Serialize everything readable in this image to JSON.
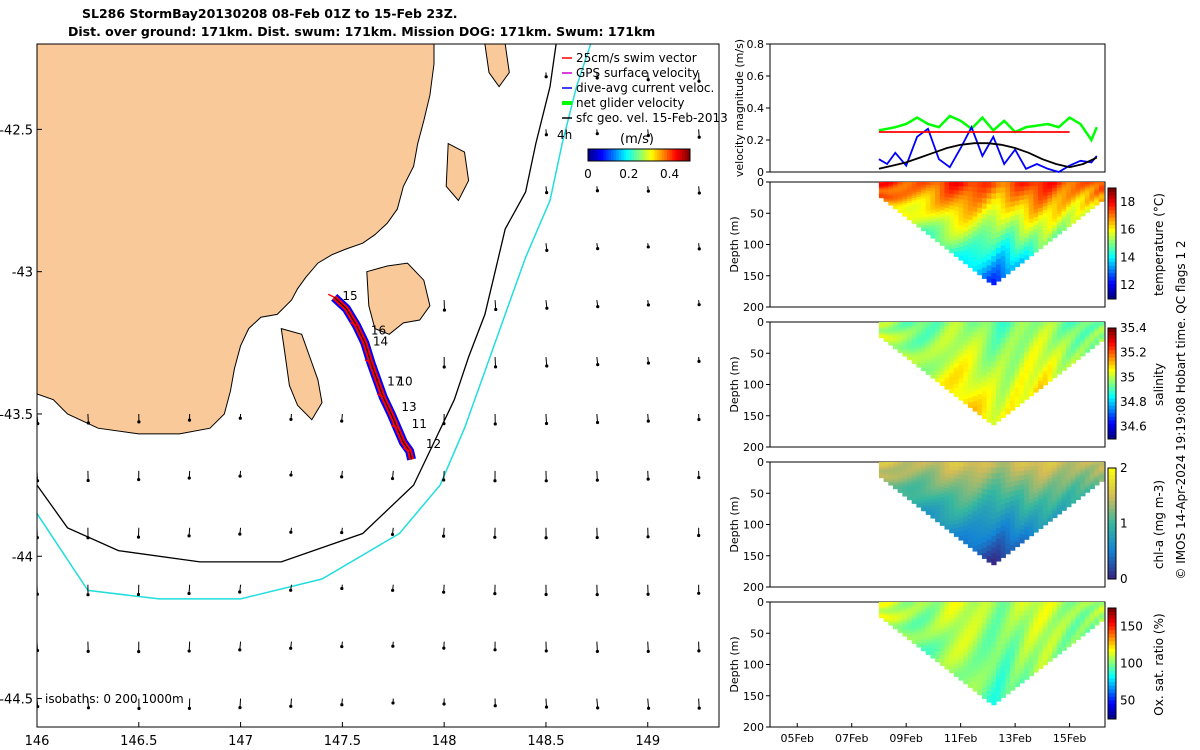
{
  "header": {
    "title_line1": "SL286 StormBay20130208 08-Feb 01Z to 15-Feb 23Z.",
    "title_line2": "Dist. over ground: 171km. Dist. swum: 171km. Mission DOG: 171km. Swum: 171km"
  },
  "side_text": "© IMOS 14-Apr-2024 19:19:08 Hobart time. QC flags 1  2",
  "colors": {
    "land": "#f9c999",
    "track": "#ff0000",
    "dive_avg": "#0000ff",
    "net_velocity": "#00ff00",
    "geo_velocity": "#000000",
    "isobath_200": "#000000",
    "isobath_1000": "#22dddd"
  },
  "chart_data": [
    {
      "type": "map",
      "x_ticks": [
        "146",
        "146.5",
        "147",
        "147.5",
        "148",
        "148.5",
        "149"
      ],
      "x_tick_values": [
        146,
        146.5,
        147,
        147.5,
        148,
        148.5,
        149
      ],
      "y_ticks": [
        "-42.5",
        "-43",
        "-43.5",
        "-44",
        "-44.5"
      ],
      "y_tick_values": [
        -42.5,
        -43,
        -43.5,
        -44,
        -44.5
      ],
      "xlim": [
        146,
        149.35
      ],
      "ylim": [
        -44.6,
        -42.2
      ],
      "legend": {
        "items": [
          "25cm/s swim vector",
          "GPS surface velocity",
          "dive-avg current veloc.",
          "net glider velocity",
          "sfc geo. vel. 15-Feb-2013"
        ],
        "colors": [
          "#ff0000",
          "#cc00cc",
          "#0000ff",
          "#00ff00",
          "#000000"
        ],
        "colorbar_label": "(m/s)",
        "colorbar_ticks": [
          "0",
          "0.2",
          "0.4"
        ],
        "colorbar_range": [
          0,
          0.5
        ],
        "placement": "top-right"
      },
      "annotation_4h": "4h",
      "isobath_label": "isobaths: 0   200  1000m",
      "day_labels": [
        {
          "text": "15",
          "lon": 147.5,
          "lat": -43.1
        },
        {
          "text": "16",
          "lon": 147.64,
          "lat": -43.22
        },
        {
          "text": "14",
          "lon": 147.65,
          "lat": -43.26
        },
        {
          "text": "17",
          "lon": 147.72,
          "lat": -43.4
        },
        {
          "text": "10",
          "lon": 147.77,
          "lat": -43.4
        },
        {
          "text": "13",
          "lon": 147.79,
          "lat": -43.49
        },
        {
          "text": "11",
          "lon": 147.84,
          "lat": -43.55
        },
        {
          "text": "12",
          "lon": 147.91,
          "lat": -43.62
        }
      ],
      "track": [
        [
          147.46,
          -43.09
        ],
        [
          147.52,
          -43.13
        ],
        [
          147.57,
          -43.19
        ],
        [
          147.61,
          -43.25
        ],
        [
          147.64,
          -43.32
        ],
        [
          147.67,
          -43.38
        ],
        [
          147.7,
          -43.44
        ],
        [
          147.74,
          -43.5
        ],
        [
          147.77,
          -43.55
        ],
        [
          147.8,
          -43.6
        ],
        [
          147.83,
          -43.63
        ],
        [
          147.84,
          -43.66
        ]
      ]
    },
    {
      "type": "line",
      "ylabel": "velocity magnitude (m/s)",
      "ylim": [
        0,
        0.8
      ],
      "y_ticks": [
        "0",
        "0.2",
        "0.4",
        "0.6",
        "0.8"
      ],
      "series": [
        {
          "color": "#00ff00",
          "x": [
            8.0,
            8.3,
            8.6,
            9.0,
            9.4,
            9.8,
            10.2,
            10.6,
            11.0,
            11.4,
            11.8,
            12.2,
            12.6,
            13.0,
            13.4,
            13.8,
            14.2,
            14.6,
            15.0,
            15.4,
            15.8,
            16.0
          ],
          "values": [
            0.26,
            0.27,
            0.28,
            0.3,
            0.34,
            0.3,
            0.28,
            0.35,
            0.32,
            0.27,
            0.34,
            0.26,
            0.32,
            0.25,
            0.28,
            0.29,
            0.3,
            0.28,
            0.34,
            0.3,
            0.2,
            0.28
          ]
        },
        {
          "color": "#0000ff",
          "x": [
            8.0,
            8.3,
            8.6,
            9.0,
            9.4,
            9.8,
            10.2,
            10.6,
            11.0,
            11.4,
            11.8,
            12.2,
            12.6,
            13.0,
            13.4,
            13.8,
            14.2,
            14.6,
            15.0,
            15.4,
            15.8,
            16.0
          ],
          "values": [
            0.08,
            0.05,
            0.12,
            0.04,
            0.22,
            0.27,
            0.08,
            0.03,
            0.15,
            0.28,
            0.1,
            0.22,
            0.05,
            0.14,
            0.02,
            0.05,
            0.02,
            0.0,
            0.04,
            0.07,
            0.06,
            0.1
          ]
        },
        {
          "color": "#000000",
          "x": [
            8.0,
            8.5,
            9.0,
            9.5,
            10.0,
            10.5,
            11.0,
            11.5,
            12.0,
            12.5,
            13.0,
            13.5,
            14.0,
            14.5,
            15.0,
            15.5,
            16.0
          ],
          "values": [
            0.02,
            0.04,
            0.06,
            0.09,
            0.12,
            0.15,
            0.17,
            0.18,
            0.18,
            0.17,
            0.15,
            0.12,
            0.08,
            0.05,
            0.03,
            0.05,
            0.09
          ]
        },
        {
          "color": "#ff0000",
          "x": [
            8.0,
            9.0,
            10.0,
            11.0,
            12.0,
            13.0,
            14.0,
            15.0
          ],
          "values": [
            0.25,
            0.25,
            0.25,
            0.25,
            0.25,
            0.25,
            0.25,
            0.25
          ]
        }
      ]
    },
    {
      "type": "heatmap",
      "variable": "temperature",
      "ylabel": "Depth (m)",
      "colorbar_label": "temperature (°C)",
      "colorbar_ticks": [
        "12",
        "14",
        "16",
        "18"
      ],
      "colorbar_range": [
        11,
        19
      ],
      "y_ticks": [
        "0",
        "50",
        "100",
        "150",
        "200"
      ],
      "ylim": [
        0,
        200
      ],
      "surface_value": 17.5,
      "bottom_value": 12.5
    },
    {
      "type": "heatmap",
      "variable": "salinity",
      "ylabel": "Depth (m)",
      "colorbar_label": "salinity",
      "colorbar_ticks": [
        "34.6",
        "34.8",
        "35",
        "35.2",
        "35.4"
      ],
      "colorbar_range": [
        34.5,
        35.4
      ],
      "y_ticks": [
        "0",
        "50",
        "100",
        "150",
        "200"
      ],
      "ylim": [
        0,
        200
      ],
      "surface_value": 34.95,
      "bottom_value": 35.1
    },
    {
      "type": "heatmap",
      "variable": "chl-a",
      "ylabel": "Depth (m)",
      "colorbar_label": "chl-a (mg m-3)",
      "colorbar_ticks": [
        "0",
        "1",
        "2"
      ],
      "colorbar_range": [
        0,
        2
      ],
      "y_ticks": [
        "0",
        "50",
        "100",
        "150",
        "200"
      ],
      "ylim": [
        0,
        200
      ],
      "surface_value": 1.5,
      "bottom_value": 0.05
    },
    {
      "type": "heatmap",
      "variable": "oxygen saturation",
      "ylabel": "Depth (m)",
      "colorbar_label": "Ox. sat. ratio (%)",
      "colorbar_ticks": [
        "50",
        "100",
        "150"
      ],
      "colorbar_range": [
        25,
        175
      ],
      "y_ticks": [
        "0",
        "50",
        "100",
        "150",
        "200"
      ],
      "ylim": [
        0,
        200
      ],
      "surface_value": 108,
      "bottom_value": 95,
      "x_ticks": [
        "05Feb",
        "07Feb",
        "09Feb",
        "11Feb",
        "13Feb",
        "15Feb"
      ]
    }
  ],
  "time_axis": {
    "range_days": [
      4,
      16.3
    ],
    "tick_values": [
      5,
      7,
      9,
      11,
      13,
      15
    ],
    "data_range_days": [
      8.0,
      16.25
    ],
    "deepest_day": 12.1,
    "max_depth_m": 165
  }
}
